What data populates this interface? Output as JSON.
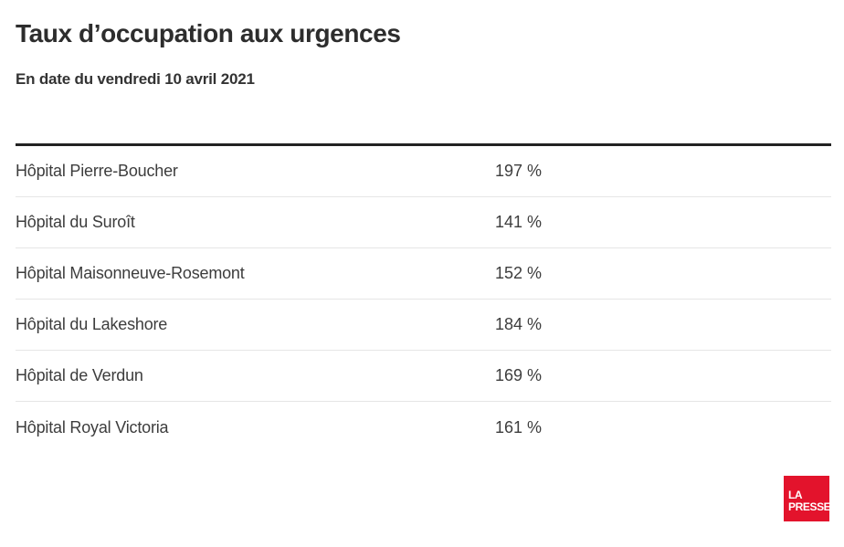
{
  "header": {
    "title": "Taux d’occupation aux urgences",
    "subtitle": "En date du vendredi 10 avril 2021"
  },
  "chart_data": {
    "type": "table",
    "title": "Taux d’occupation aux urgences",
    "subtitle": "En date du vendredi 10 avril 2021",
    "unit": "%",
    "rows": [
      {
        "label": "Hôpital Pierre-Boucher",
        "value": "197 %"
      },
      {
        "label": "Hôpital du Suroît",
        "value": "141 %"
      },
      {
        "label": "Hôpital Maisonneuve-Rosemont",
        "value": "152 %"
      },
      {
        "label": "Hôpital du Lakeshore",
        "value": "184 %"
      },
      {
        "label": "Hôpital de Verdun",
        "value": "169 %"
      },
      {
        "label": "Hôpital Royal Victoria",
        "value": "161 %"
      }
    ],
    "values_numeric": [
      197,
      141,
      152,
      184,
      169,
      161
    ],
    "layout": {
      "grid": "off",
      "legend": "none",
      "value_column_alignment": "left"
    }
  },
  "branding": {
    "logo_line1": "LA",
    "logo_line2": "PRESSE",
    "logo_color": "#e3132c"
  },
  "colors": {
    "background": "#ffffff",
    "title_text": "#2d2d2d",
    "row_text": "#3d3d3d",
    "top_rule": "#222222",
    "row_divider": "#e6e6e6",
    "accent_red": "#e3132c",
    "logo_text": "#ffffff"
  }
}
